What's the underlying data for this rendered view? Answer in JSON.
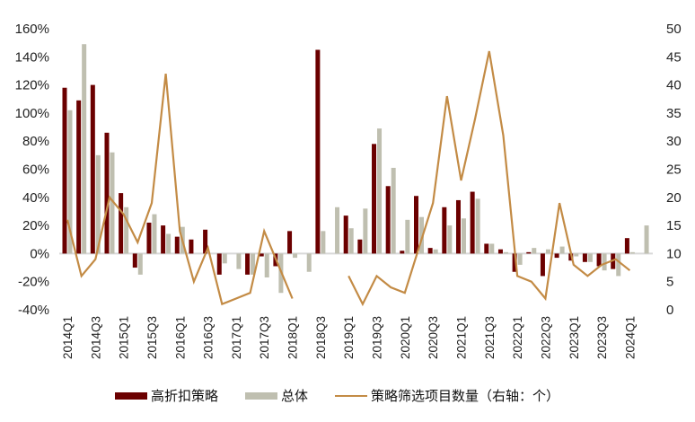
{
  "chart_data": {
    "type": "bar+line",
    "title": "",
    "categories": [
      "2014Q1",
      "2014Q2",
      "2014Q3",
      "2014Q4",
      "2015Q1",
      "2015Q2",
      "2015Q3",
      "2015Q4",
      "2016Q1",
      "2016Q2",
      "2016Q3",
      "2016Q4",
      "2017Q1",
      "2017Q2",
      "2017Q3",
      "2017Q4",
      "2018Q1",
      "2018Q2",
      "2018Q3",
      "2018Q4",
      "2019Q1",
      "2019Q2",
      "2019Q3",
      "2019Q4",
      "2020Q1",
      "2020Q2",
      "2020Q3",
      "2020Q4",
      "2021Q1",
      "2021Q2",
      "2021Q3",
      "2021Q4",
      "2022Q1",
      "2022Q2",
      "2022Q3",
      "2022Q4",
      "2023Q1",
      "2023Q2",
      "2023Q3",
      "2023Q4",
      "2024Q1",
      "2024Q2"
    ],
    "x_tick_labels": [
      "2014Q1",
      "2014Q3",
      "2015Q1",
      "2015Q3",
      "2016Q1",
      "2016Q3",
      "2017Q1",
      "2017Q3",
      "2018Q1",
      "2018Q3",
      "2019Q1",
      "2019Q3",
      "2020Q1",
      "2020Q3",
      "2021Q1",
      "2021Q3",
      "2022Q1",
      "2022Q3",
      "2023Q1",
      "2023Q3",
      "2024Q1"
    ],
    "series": [
      {
        "name": "高折扣策略",
        "type": "bar",
        "axis": "left",
        "color": "#6B0000",
        "values": [
          118,
          109,
          120,
          86,
          43,
          -10,
          22,
          20,
          12,
          10,
          17,
          -15,
          0,
          -15,
          -2,
          -9,
          16,
          0,
          145,
          0,
          27,
          10,
          78,
          48,
          2,
          41,
          4,
          33,
          38,
          44,
          7,
          3,
          -13,
          1,
          -16,
          -3,
          -5,
          -6,
          -9,
          -11,
          11,
          0
        ]
      },
      {
        "name": "总体",
        "type": "bar",
        "axis": "left",
        "color": "#BFBFB0",
        "values": [
          102,
          149,
          70,
          72,
          33,
          -15,
          28,
          14,
          19,
          0,
          0,
          -7,
          -11,
          -15,
          -17,
          -28,
          -3,
          -13,
          16,
          33,
          18,
          32,
          89,
          61,
          24,
          26,
          3,
          20,
          25,
          39,
          7,
          1,
          -8,
          4,
          3,
          5,
          -2,
          -6,
          -12,
          -16,
          1,
          20
        ]
      },
      {
        "name": "策略筛选项目数量（右轴：个）",
        "type": "line",
        "axis": "right",
        "color": "#C38B45",
        "values": [
          16,
          6,
          9,
          20,
          17,
          12,
          19,
          42,
          14,
          5,
          11,
          1,
          2,
          3,
          14,
          8,
          2,
          null,
          null,
          null,
          6,
          1,
          6,
          4,
          3,
          11,
          19,
          38,
          23,
          34,
          46,
          31,
          6,
          5,
          2,
          19,
          8,
          6,
          8,
          9,
          7,
          null
        ]
      }
    ],
    "y_left": {
      "min": -40,
      "max": 160,
      "step": 20,
      "format": "percent",
      "ticks": [
        "160%",
        "140%",
        "120%",
        "100%",
        "80%",
        "60%",
        "40%",
        "20%",
        "0%",
        "-20%",
        "-40%"
      ]
    },
    "y_right": {
      "min": 0,
      "max": 50,
      "step": 5,
      "ticks": [
        "50",
        "45",
        "40",
        "35",
        "30",
        "25",
        "20",
        "15",
        "10",
        "5",
        "0"
      ]
    },
    "xlabel": "",
    "ylabel": "",
    "ylabel_right": "",
    "grid": false,
    "legend_position": "bottom"
  },
  "legend": {
    "items": [
      {
        "label": "高折扣策略",
        "kind": "bar",
        "color": "#6B0000"
      },
      {
        "label": "总体",
        "kind": "bar",
        "color": "#BFBFB0"
      },
      {
        "label": "策略筛选项目数量（右轴：个）",
        "kind": "line",
        "color": "#C38B45"
      }
    ]
  }
}
